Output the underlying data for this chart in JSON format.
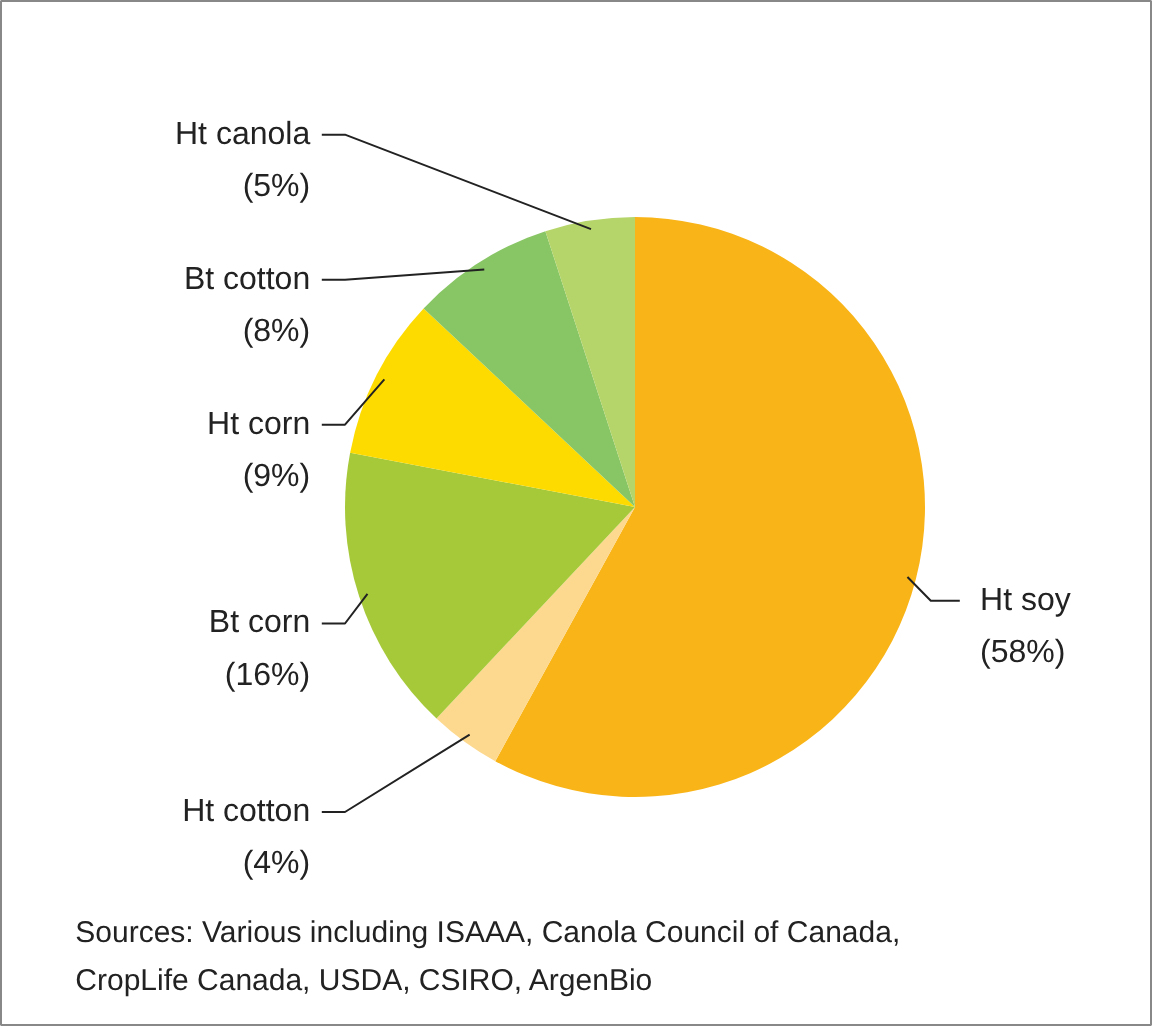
{
  "chart_data": {
    "type": "pie",
    "categories": [
      "Ht soy",
      "Ht cotton",
      "Bt corn",
      "Ht corn",
      "Bt cotton",
      "Ht canola"
    ],
    "values": [
      58,
      4,
      16,
      9,
      8,
      5
    ],
    "colors": [
      "#f9b418",
      "#fdd88f",
      "#a6c93a",
      "#fddb00",
      "#88c665",
      "#b5d56a"
    ],
    "value_labels": [
      "(58%)",
      "(4%)",
      "(16%)",
      "(9%)",
      "(8%)",
      "(5%)"
    ],
    "annotations": [
      "Sources: Various including ISAAA, Canola Council of Canada, CropLife Canada, USDA, CSIRO, ArgenBio"
    ]
  }
}
